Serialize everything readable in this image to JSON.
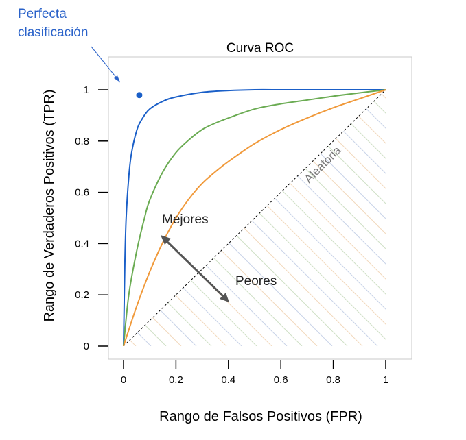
{
  "annotation": {
    "perfect_line1": "Perfecta",
    "perfect_line2": "clasificación",
    "better": "Mejores",
    "worse": "Peores",
    "random": "Aleatoria"
  },
  "colors": {
    "blue": "#1a5fc8",
    "green": "#6aab52",
    "orange": "#f0993a",
    "axis": "#000000",
    "arrow": "#555555",
    "hatch": "#c9d3e8",
    "random_text": "#777777",
    "annotation_blue": "#2a62c9"
  },
  "chart_data": {
    "type": "line",
    "title": "Curva ROC",
    "xlabel": "Rango de Falsos Positivos (FPR)",
    "ylabel": "Rango de Verdaderos Positivos (TPR)",
    "xlim": [
      0,
      1
    ],
    "ylim": [
      0,
      1
    ],
    "x_ticks": [
      {
        "value": 0,
        "label": "0"
      },
      {
        "value": 0.2,
        "label": "0.2"
      },
      {
        "value": 0.4,
        "label": "0.4"
      },
      {
        "value": 0.6,
        "label": "0.6"
      },
      {
        "value": 0.8,
        "label": "0.8"
      },
      {
        "value": 1,
        "label": "1"
      }
    ],
    "y_ticks": [
      {
        "value": 0,
        "label": "0"
      },
      {
        "value": 0.2,
        "label": "0.2"
      },
      {
        "value": 0.4,
        "label": "0.4"
      },
      {
        "value": 0.6,
        "label": "0.6"
      },
      {
        "value": 0.8,
        "label": "0.8"
      },
      {
        "value": 1,
        "label": "1"
      }
    ],
    "series": [
      {
        "color": "#1a5fc8",
        "x": [
          0,
          0.005,
          0.01,
          0.02,
          0.03,
          0.05,
          0.07,
          0.1,
          0.15,
          0.2,
          0.3,
          0.4,
          0.5,
          0.6,
          0.7,
          0.8,
          0.9,
          1.0
        ],
        "y": [
          0,
          0.32,
          0.5,
          0.66,
          0.75,
          0.84,
          0.885,
          0.925,
          0.955,
          0.972,
          0.99,
          0.997,
          1.0,
          1.0,
          1.0,
          1.0,
          1.0,
          1.0
        ]
      },
      {
        "color": "#6aab52",
        "x": [
          0,
          0.02,
          0.05,
          0.08,
          0.1,
          0.15,
          0.2,
          0.25,
          0.3,
          0.35,
          0.4,
          0.5,
          0.6,
          0.7,
          0.8,
          0.9,
          1.0
        ],
        "y": [
          0,
          0.2,
          0.37,
          0.5,
          0.57,
          0.68,
          0.755,
          0.805,
          0.845,
          0.87,
          0.89,
          0.925,
          0.945,
          0.96,
          0.975,
          0.988,
          1.0
        ]
      },
      {
        "color": "#f0993a",
        "x": [
          0,
          0.05,
          0.1,
          0.15,
          0.2,
          0.25,
          0.3,
          0.35,
          0.4,
          0.5,
          0.6,
          0.7,
          0.8,
          0.9,
          1.0
        ],
        "y": [
          0,
          0.155,
          0.29,
          0.405,
          0.5,
          0.575,
          0.635,
          0.68,
          0.72,
          0.79,
          0.845,
          0.89,
          0.93,
          0.965,
          1.0
        ]
      }
    ],
    "perfect_point": {
      "x": 0.06,
      "y": 0.99
    },
    "random_line": {
      "x": [
        0,
        1
      ],
      "y": [
        0,
        1
      ]
    },
    "grid": false,
    "legend": "none"
  }
}
